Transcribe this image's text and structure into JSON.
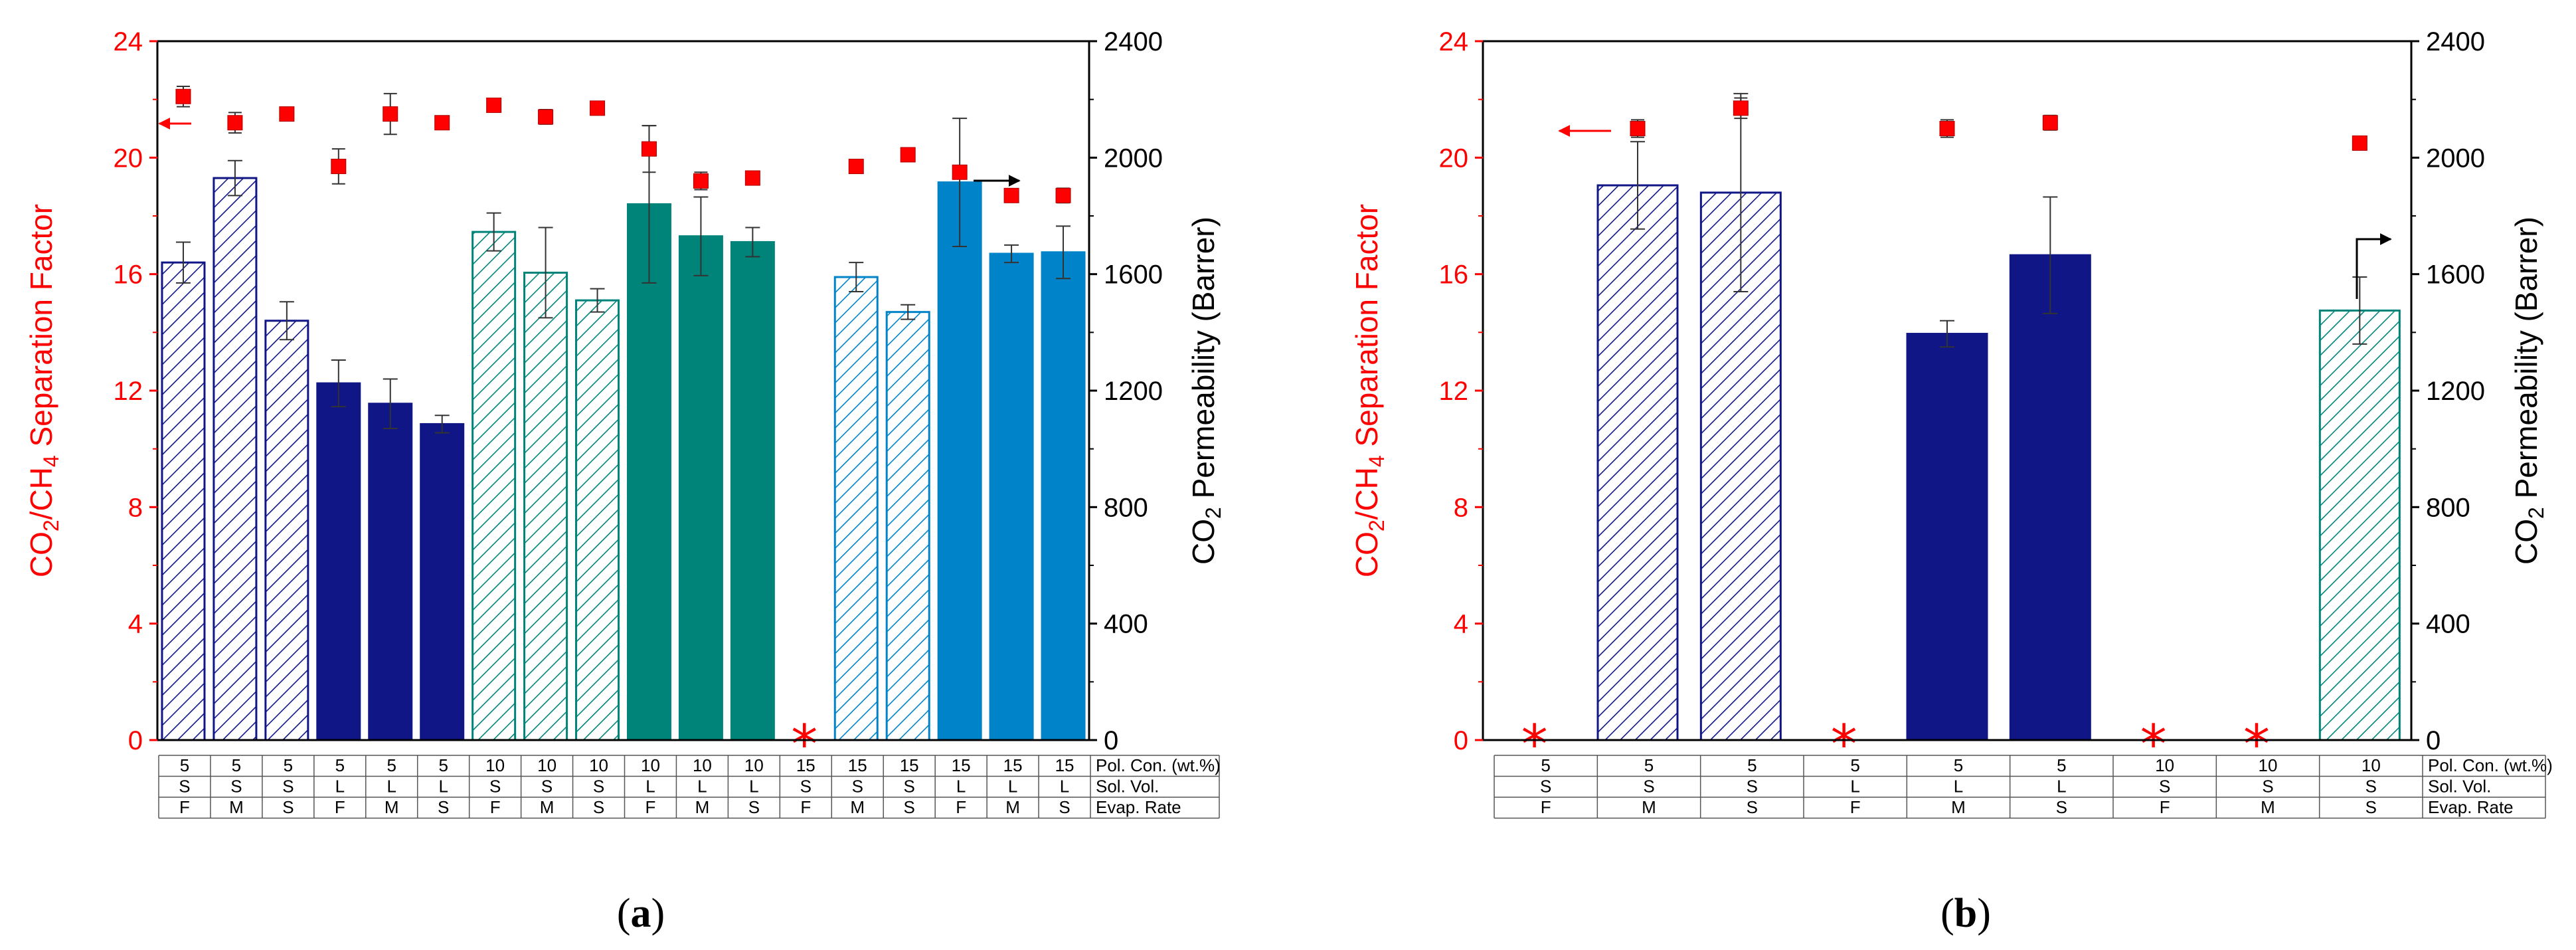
{
  "chart_data": [
    {
      "panel": "(a)",
      "panel_prefix": "(",
      "panel_letter": "a",
      "panel_suffix": ")",
      "type": "bar",
      "left_axis": {
        "label_parts": [
          "CO",
          "2",
          "/CH",
          "4",
          " Separation Factor"
        ],
        "ylim": [
          0,
          24
        ],
        "ticks": [
          "0",
          "4",
          "8",
          "12",
          "16",
          "20",
          "24"
        ],
        "color": "#ff0000"
      },
      "right_axis": {
        "label_parts": [
          "CO",
          "2",
          " Permeability (Barrer)"
        ],
        "ylim": [
          0,
          2400
        ],
        "ticks": [
          "0",
          "400",
          "800",
          "1200",
          "1600",
          "2000",
          "2400"
        ],
        "color": "#000000"
      },
      "row_labels": [
        "Pol. Con. (wt.%)",
        "Sol. Vol.",
        "Evap. Rate"
      ],
      "samples": [
        {
          "pol": "5",
          "sol": "S",
          "evap": "F",
          "perm": 1640,
          "perm_err": 70,
          "sep": 22.1,
          "sep_err": 0.35,
          "style": "hatch-navy"
        },
        {
          "pol": "5",
          "sol": "S",
          "evap": "M",
          "perm": 1930,
          "perm_err": 60,
          "sep": 21.2,
          "sep_err": 0.35,
          "style": "hatch-navy"
        },
        {
          "pol": "5",
          "sol": "S",
          "evap": "S",
          "perm": 1440,
          "perm_err": 65,
          "sep": 21.5,
          "sep_err": 0.15,
          "style": "hatch-navy"
        },
        {
          "pol": "5",
          "sol": "L",
          "evap": "F",
          "perm": 1225,
          "perm_err": 80,
          "sep": 19.7,
          "sep_err": 0.6,
          "style": "solid-navy"
        },
        {
          "pol": "5",
          "sol": "L",
          "evap": "M",
          "perm": 1155,
          "perm_err": 85,
          "sep": 21.5,
          "sep_err": 0.7,
          "style": "solid-navy"
        },
        {
          "pol": "5",
          "sol": "L",
          "evap": "S",
          "perm": 1085,
          "perm_err": 30,
          "sep": 21.2,
          "sep_err": 0.15,
          "style": "solid-navy"
        },
        {
          "pol": "10",
          "sol": "S",
          "evap": "F",
          "perm": 1745,
          "perm_err": 65,
          "sep": 21.8,
          "sep_err": 0.15,
          "style": "hatch-teal"
        },
        {
          "pol": "10",
          "sol": "S",
          "evap": "M",
          "perm": 1605,
          "perm_err": 155,
          "sep": 21.4,
          "sep_err": 0.25,
          "style": "hatch-teal"
        },
        {
          "pol": "10",
          "sol": "S",
          "evap": "S",
          "perm": 1510,
          "perm_err": 40,
          "sep": 21.7,
          "sep_err": 0.15,
          "style": "hatch-teal"
        },
        {
          "pol": "10",
          "sol": "L",
          "evap": "F",
          "perm": 1840,
          "perm_err": 270,
          "sep": 20.3,
          "sep_err": 0.8,
          "style": "solid-teal"
        },
        {
          "pol": "10",
          "sol": "L",
          "evap": "M",
          "perm": 1730,
          "perm_err": 135,
          "sep": 19.2,
          "sep_err": 0.3,
          "style": "solid-teal"
        },
        {
          "pol": "10",
          "sol": "L",
          "evap": "S",
          "perm": 1710,
          "perm_err": 50,
          "sep": 19.3,
          "sep_err": 0.15,
          "style": "solid-teal"
        },
        {
          "pol": "15",
          "sol": "S",
          "evap": "F",
          "perm": null,
          "perm_err": null,
          "sep": null,
          "sep_err": null,
          "style": "star"
        },
        {
          "pol": "15",
          "sol": "S",
          "evap": "M",
          "perm": 1590,
          "perm_err": 50,
          "sep": 19.7,
          "sep_err": 0.15,
          "style": "hatch-blue"
        },
        {
          "pol": "15",
          "sol": "S",
          "evap": "S",
          "perm": 1470,
          "perm_err": 25,
          "sep": 20.1,
          "sep_err": 0.15,
          "style": "hatch-blue"
        },
        {
          "pol": "15",
          "sol": "L",
          "evap": "F",
          "perm": 1915,
          "perm_err": 220,
          "sep": 19.5,
          "sep_err": 0.2,
          "style": "solid-blue"
        },
        {
          "pol": "15",
          "sol": "L",
          "evap": "M",
          "perm": 1670,
          "perm_err": 30,
          "sep": 18.7,
          "sep_err": 0.1,
          "style": "solid-blue"
        },
        {
          "pol": "15",
          "sol": "L",
          "evap": "S",
          "perm": 1675,
          "perm_err": 90,
          "sep": 18.7,
          "sep_err": 0.25,
          "style": "solid-blue"
        }
      ]
    },
    {
      "panel": "(b)",
      "panel_prefix": "(",
      "panel_letter": "b",
      "panel_suffix": ")",
      "type": "bar",
      "left_axis": {
        "label_parts": [
          "CO",
          "2",
          "/CH",
          "4",
          " Separation Factor"
        ],
        "ylim": [
          0,
          24
        ],
        "ticks": [
          "0",
          "4",
          "8",
          "12",
          "16",
          "20",
          "24"
        ],
        "color": "#ff0000"
      },
      "right_axis": {
        "label_parts": [
          "CO",
          "2",
          " Permeability (Barrer)"
        ],
        "ylim": [
          0,
          2400
        ],
        "ticks": [
          "0",
          "400",
          "800",
          "1200",
          "1600",
          "2000",
          "2400"
        ],
        "color": "#000000"
      },
      "row_labels": [
        "Pol. Con. (wt.%)",
        "Sol. Vol.",
        "Evap. Rate"
      ],
      "samples": [
        {
          "pol": "5",
          "sol": "S",
          "evap": "F",
          "perm": null,
          "perm_err": null,
          "sep": null,
          "sep_err": null,
          "style": "star"
        },
        {
          "pol": "5",
          "sol": "S",
          "evap": "M",
          "perm": 1905,
          "perm_err": 150,
          "sep": 21.0,
          "sep_err": 0.3,
          "style": "hatch-navy"
        },
        {
          "pol": "5",
          "sol": "S",
          "evap": "S",
          "perm": 1880,
          "perm_err": 340,
          "sep": 21.7,
          "sep_err": 0.35,
          "style": "hatch-navy"
        },
        {
          "pol": "5",
          "sol": "L",
          "evap": "F",
          "perm": null,
          "perm_err": null,
          "sep": null,
          "sep_err": null,
          "style": "star"
        },
        {
          "pol": "5",
          "sol": "L",
          "evap": "M",
          "perm": 1395,
          "perm_err": 45,
          "sep": 21.0,
          "sep_err": 0.3,
          "style": "solid-navy"
        },
        {
          "pol": "5",
          "sol": "L",
          "evap": "S",
          "perm": 1665,
          "perm_err": 200,
          "sep": 21.2,
          "sep_err": 0.25,
          "style": "solid-navy"
        },
        {
          "pol": "10",
          "sol": "S",
          "evap": "F",
          "perm": null,
          "perm_err": null,
          "sep": null,
          "sep_err": null,
          "style": "star"
        },
        {
          "pol": "10",
          "sol": "S",
          "evap": "M",
          "perm": null,
          "perm_err": null,
          "sep": null,
          "sep_err": null,
          "style": "star"
        },
        {
          "pol": "10",
          "sol": "S",
          "evap": "S",
          "perm": 1475,
          "perm_err": 115,
          "sep": 20.5,
          "sep_err": 0.12,
          "style": "hatch-teal"
        }
      ]
    }
  ],
  "colors": {
    "navy": "#101685",
    "teal": "#00847a",
    "blue": "#0083c8",
    "red": "#ff0000",
    "black": "#000000"
  },
  "star_symbol": "*"
}
